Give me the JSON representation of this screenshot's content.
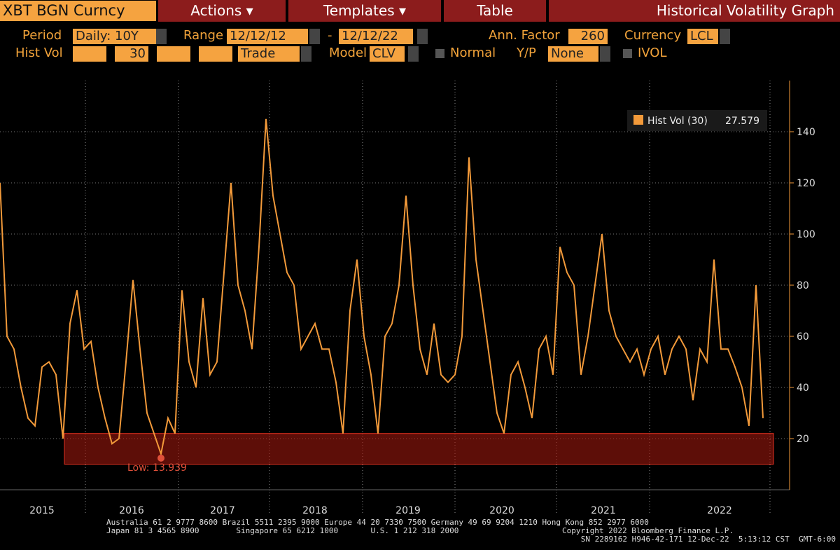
{
  "toolbar": {
    "security": "XBT BGN Curncy",
    "tabs": [
      "Actions",
      "Templates",
      "Table"
    ],
    "title": "Historical Volatility Graph"
  },
  "controls": {
    "period_label": "Period",
    "period": "Daily: 10Y",
    "range_label": "Range",
    "range_start": "12/12/12",
    "range_sep": "-",
    "range_end": "12/12/22",
    "ann_factor_label": "Ann. Factor",
    "ann_factor": "260",
    "currency_label": "Currency",
    "currency": "LCL",
    "hist_vol_label": "Hist Vol",
    "hist_vol": "30",
    "price": "Trade",
    "model_label": "Model",
    "model": "CLV",
    "normal": "Normal",
    "yp_label": "Y/P",
    "yp": "None",
    "ivol": "IVOL"
  },
  "chart_data": {
    "type": "line",
    "xtick_labels": [
      "2015",
      "2016",
      "2017",
      "2018",
      "2019",
      "2020",
      "2021",
      "2022"
    ],
    "series": [
      {
        "name": "Hist Vol (30)",
        "color": "#f39a3a",
        "last_value": 27.579,
        "values": [
          120,
          60,
          55,
          40,
          28,
          25,
          48,
          50,
          45,
          20,
          65,
          78,
          55,
          58,
          40,
          28,
          18,
          20,
          50,
          82,
          55,
          30,
          22,
          14,
          28,
          22,
          78,
          50,
          40,
          75,
          45,
          50,
          85,
          120,
          80,
          70,
          55,
          95,
          145,
          115,
          100,
          85,
          80,
          55,
          60,
          65,
          55,
          55,
          42,
          22,
          70,
          90,
          60,
          45,
          22,
          60,
          65,
          80,
          115,
          80,
          55,
          45,
          65,
          45,
          42,
          45,
          60,
          130,
          90,
          70,
          50,
          30,
          22,
          45,
          50,
          40,
          28,
          55,
          60,
          45,
          95,
          85,
          80,
          45,
          60,
          80,
          100,
          70,
          60,
          55,
          50,
          55,
          45,
          55,
          60,
          45,
          55,
          60,
          55,
          35,
          55,
          50,
          90,
          55,
          55,
          48,
          40,
          25,
          80,
          28
        ]
      }
    ],
    "ylim": [
      0,
      160
    ],
    "yticks": [
      20,
      40,
      60,
      80,
      100,
      120,
      140
    ],
    "grid": true,
    "low_label": "Low: 13.939"
  },
  "footer": [
    "Australia 61 2 9777 8600 Brazil 5511 2395 9000 Europe 44 20 7330 7500 Germany 49 69 9204 1210 Hong Kong 852 2977 6000",
    "Japan 81 3 4565 8900        Singapore 65 6212 1000       U.S. 1 212 318 2000",
    "Copyright 2022 Bloomberg Finance L.P.",
    "SN 2289162 H946-42-171 12-Dec-22  5:13:12 CST  GMT-6:00"
  ]
}
